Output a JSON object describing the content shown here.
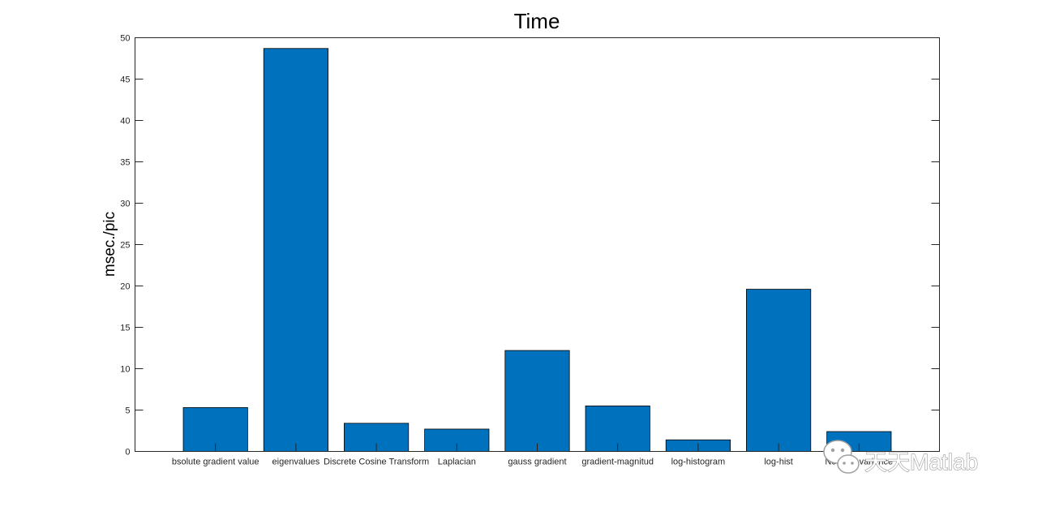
{
  "chart_data": {
    "type": "bar",
    "title": "Time",
    "xlabel": "",
    "ylabel": "msec./pic",
    "categories": [
      "bsolute gradient value",
      "eigenvalues",
      "Discrete Cosine Transform",
      "Laplacian",
      "gauss gradient",
      "gradient-magnitud",
      "log-histogram",
      "log-hist",
      "Normed variance"
    ],
    "values": [
      5.3,
      48.7,
      3.4,
      2.7,
      12.2,
      5.5,
      1.4,
      19.6,
      2.4
    ],
    "ylim": [
      0,
      50
    ],
    "xlim": [
      0,
      10
    ],
    "yticks": [
      0,
      5,
      10,
      15,
      20,
      25,
      30,
      35,
      40,
      45,
      50
    ],
    "bar_color": "#0072bd",
    "grid": false,
    "legend": "none"
  },
  "watermark": {
    "text": "天天Matlab",
    "icon": "wechat-icon"
  }
}
